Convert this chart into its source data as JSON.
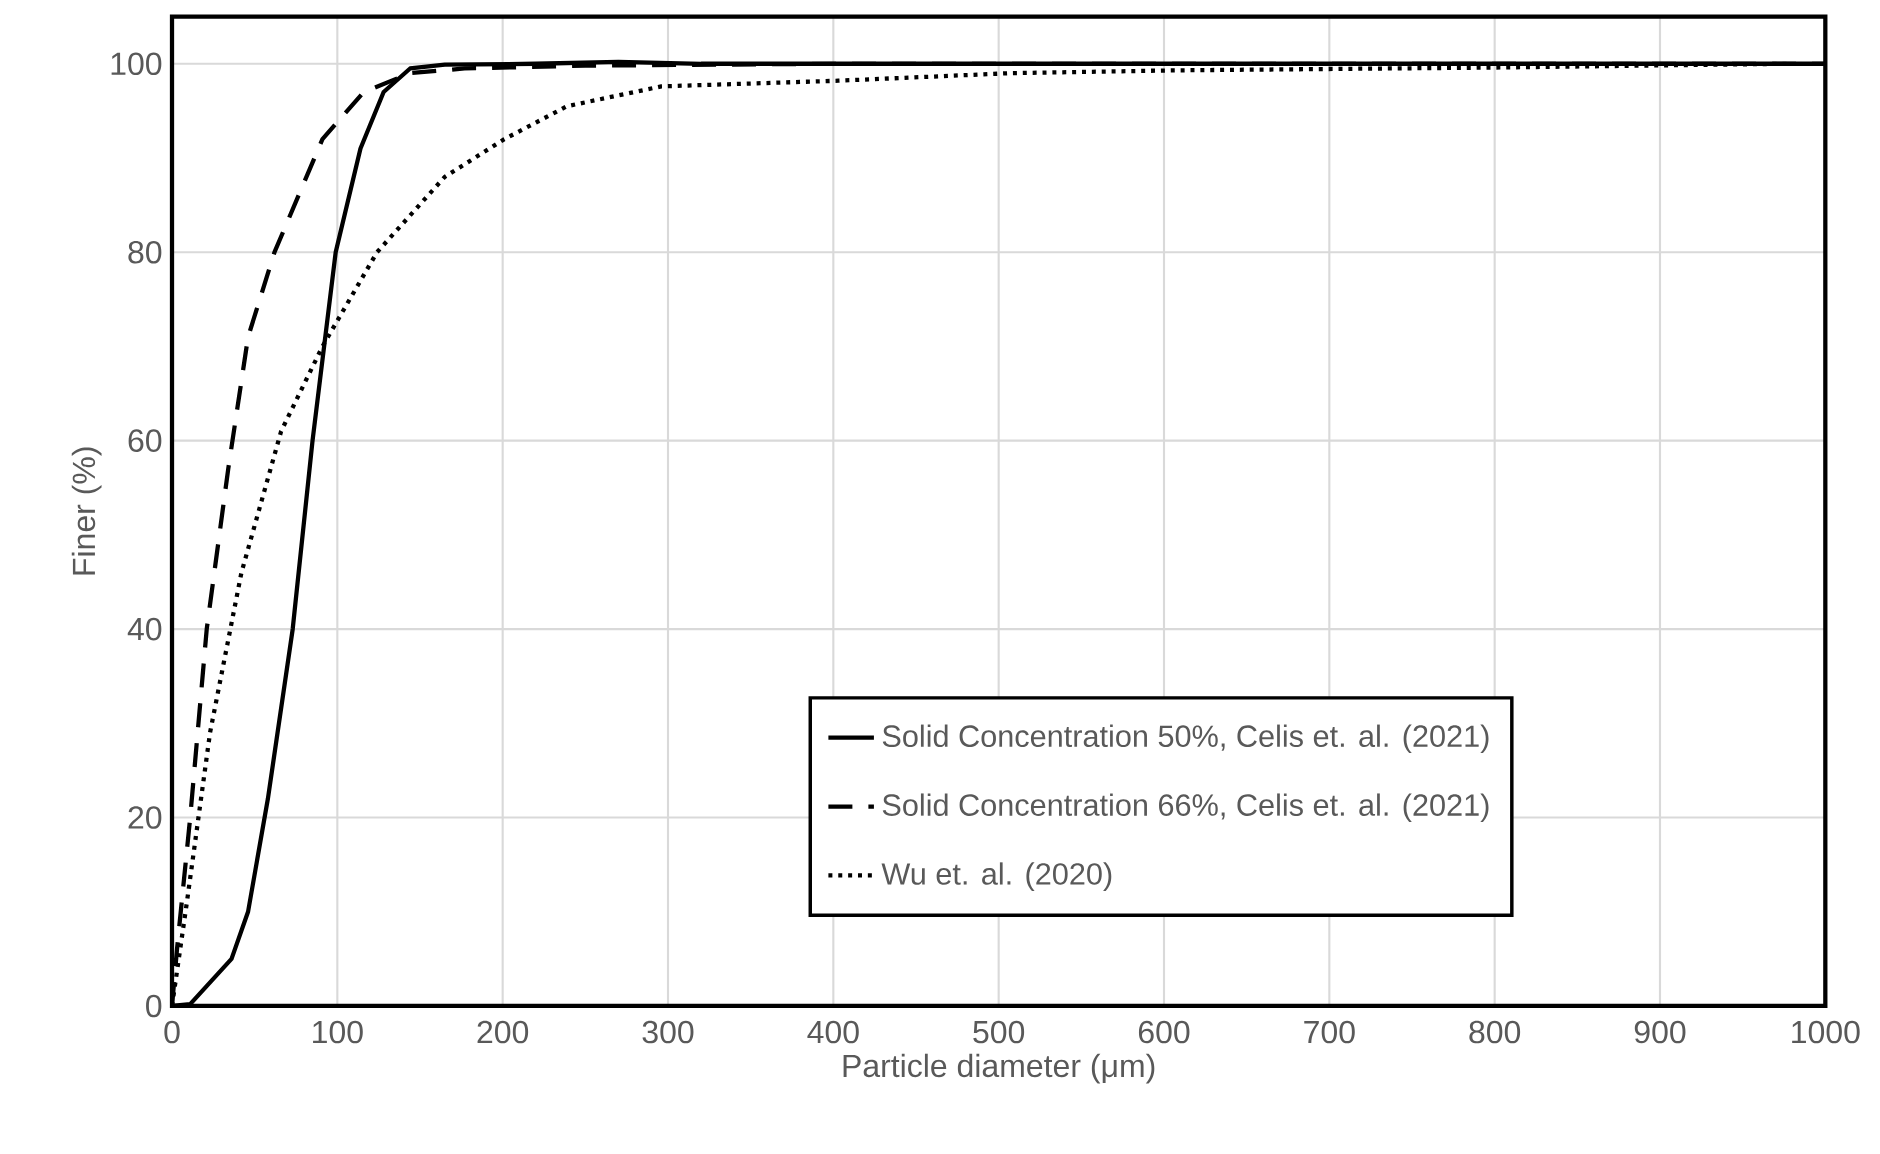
{
  "chart_data": {
    "type": "line",
    "xlabel": "Particle diameter (μm)",
    "ylabel": "Finer (%)",
    "xlim": [
      0,
      1000
    ],
    "ylim": [
      0,
      105
    ],
    "xticks": [
      0,
      100,
      200,
      300,
      400,
      500,
      600,
      700,
      800,
      900,
      1000
    ],
    "yticks": [
      0,
      20,
      40,
      60,
      80,
      100
    ],
    "grid": true,
    "legend": "right",
    "marker": "none",
    "series": [
      {
        "name": "Solid Concentration 50%, Celis et. al. (2021)",
        "color": "#000000",
        "line_style": "solid",
        "x": [
          0,
          11,
          36,
          46,
          58,
          73,
          85,
          99,
          114,
          128,
          144,
          165,
          220,
          270,
          320,
          500,
          700,
          1000
        ],
        "values": [
          0,
          0.2,
          5,
          10,
          22,
          40,
          60,
          80,
          91,
          97,
          99.5,
          99.9,
          100,
          100.2,
          100,
          100,
          100,
          100
        ]
      },
      {
        "name": "Solid Concentration 66%, Celis et. al. (2021)",
        "color": "#000000",
        "line_style": "dashed",
        "x": [
          0,
          3,
          11,
          21,
          34,
          46,
          62,
          91,
          116,
          144,
          177,
          250,
          400,
          600,
          800,
          1000
        ],
        "values": [
          0,
          6,
          20,
          40,
          57,
          71,
          80,
          92,
          97,
          99,
          99.5,
          99.8,
          100,
          100,
          100,
          100
        ]
      },
      {
        "name": "Wu et. al. (2020)",
        "color": "#000000",
        "line_style": "dotted",
        "x": [
          0,
          9,
          23,
          42,
          66,
          91,
          124,
          165,
          201,
          239,
          296,
          403,
          507,
          606,
          800,
          978
        ],
        "values": [
          0,
          11,
          29,
          46,
          61,
          70,
          80,
          88,
          92,
          95.5,
          97.6,
          98.2,
          99,
          99.3,
          99.6,
          100
        ]
      }
    ]
  }
}
